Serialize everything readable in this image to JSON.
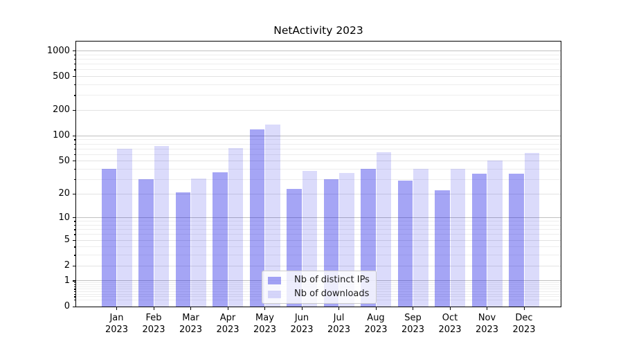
{
  "chart_data": {
    "type": "bar",
    "title": "NetActivity 2023",
    "categories": [
      "Jan",
      "Feb",
      "Mar",
      "Apr",
      "May",
      "Jun",
      "Jul",
      "Aug",
      "Sep",
      "Oct",
      "Nov",
      "Dec"
    ],
    "x_year_label": "2023",
    "series": [
      {
        "name": "Nb of distinct IPs",
        "color": "rgba(30,30,230,0.40)",
        "values": [
          40,
          30,
          21,
          37,
          120,
          23,
          30,
          40,
          29,
          22,
          35,
          35
        ]
      },
      {
        "name": "Nb of downloads",
        "color": "rgba(30,30,230,0.16)",
        "values": [
          70,
          75,
          31,
          71,
          135,
          38,
          36,
          64,
          40,
          40,
          51,
          63
        ]
      }
    ],
    "y_ticks": [
      1000,
      500,
      200,
      100,
      50,
      20,
      10,
      5,
      2,
      1,
      0
    ],
    "y_scale": "log1p",
    "ylim": [
      0,
      1290
    ],
    "y_max": 1290,
    "grid": "on",
    "legend_position": "lower center",
    "colors": {
      "major_grid": "#bfbfbf",
      "labeled_grid": "#e2e2e2",
      "minor_grid": "#ededed",
      "spine": "#000000",
      "text": "#000000"
    }
  }
}
